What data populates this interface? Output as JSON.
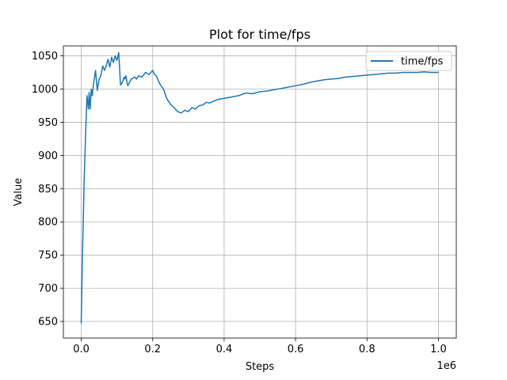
{
  "chart_data": {
    "type": "line",
    "title": "Plot for time/fps",
    "xlabel": "Steps",
    "ylabel": "Value",
    "x_offset_label": "1e6",
    "xlim": [
      -0.05,
      1.05
    ],
    "ylim": [
      625,
      1065
    ],
    "xticks": [
      0.0,
      0.2,
      0.4,
      0.6,
      0.8,
      1.0
    ],
    "xtick_labels": [
      "0.0",
      "0.2",
      "0.4",
      "0.6",
      "0.8",
      "1.0"
    ],
    "yticks": [
      650,
      700,
      750,
      800,
      850,
      900,
      950,
      1000,
      1050
    ],
    "ytick_labels": [
      "650",
      "700",
      "750",
      "800",
      "850",
      "900",
      "950",
      "1000",
      "1050"
    ],
    "grid": true,
    "legend_position": "top-right",
    "series": [
      {
        "name": "time/fps",
        "color": "#1f77b4",
        "x": [
          0.0,
          0.004,
          0.008,
          0.012,
          0.016,
          0.02,
          0.022,
          0.025,
          0.028,
          0.031,
          0.035,
          0.04,
          0.045,
          0.05,
          0.055,
          0.06,
          0.065,
          0.07,
          0.075,
          0.08,
          0.085,
          0.09,
          0.095,
          0.1,
          0.105,
          0.11,
          0.115,
          0.12,
          0.122,
          0.125,
          0.13,
          0.14,
          0.15,
          0.155,
          0.16,
          0.17,
          0.18,
          0.19,
          0.2,
          0.205,
          0.21,
          0.22,
          0.23,
          0.24,
          0.25,
          0.26,
          0.27,
          0.28,
          0.29,
          0.3,
          0.31,
          0.32,
          0.33,
          0.34,
          0.35,
          0.36,
          0.38,
          0.4,
          0.42,
          0.44,
          0.46,
          0.48,
          0.5,
          0.52,
          0.54,
          0.56,
          0.58,
          0.6,
          0.62,
          0.64,
          0.66,
          0.68,
          0.7,
          0.72,
          0.74,
          0.76,
          0.78,
          0.8,
          0.82,
          0.84,
          0.86,
          0.88,
          0.9,
          0.92,
          0.94,
          0.96,
          0.98,
          1.0
        ],
        "y": [
          647,
          760,
          860,
          930,
          990,
          970,
          995,
          970,
          1000,
          990,
          1010,
          1028,
          998,
          1015,
          1020,
          1035,
          1028,
          1035,
          1045,
          1033,
          1048,
          1040,
          1050,
          1043,
          1055,
          1006,
          1010,
          1018,
          1015,
          1020,
          1005,
          1015,
          1018,
          1015,
          1020,
          1018,
          1025,
          1022,
          1028,
          1022,
          1020,
          1008,
          1000,
          985,
          977,
          972,
          966,
          964,
          968,
          966,
          972,
          970,
          975,
          976,
          980,
          979,
          984,
          986,
          988,
          990,
          994,
          993,
          996,
          997,
          999,
          1001,
          1003,
          1005,
          1007,
          1010,
          1012,
          1014,
          1015,
          1016,
          1018,
          1019,
          1020,
          1021,
          1022,
          1023,
          1024,
          1024,
          1025,
          1025,
          1025,
          1026,
          1025,
          1025
        ]
      }
    ]
  }
}
